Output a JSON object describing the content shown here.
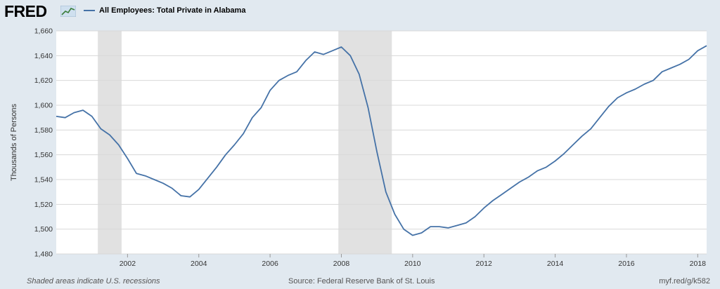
{
  "branding": {
    "logo_text": "FRED"
  },
  "footer": {
    "note": "Shaded areas indicate U.S. recessions",
    "source": "Source: Federal Reserve Bank of St. Louis",
    "link": "myf.red/g/k582"
  },
  "colors": {
    "series": "#4572a7",
    "recession": "#e1e1e1",
    "grid": "#d8d8d8",
    "plot_bg": "#ffffff",
    "page_bg": "#e1e9f0"
  },
  "chart_data": {
    "type": "line",
    "title": "",
    "xlabel": "",
    "ylabel": "Thousands of Persons",
    "ylim": [
      1480,
      1660
    ],
    "xlim": [
      "2000-01-01",
      "2018-04-01"
    ],
    "y_ticks": [
      1480,
      1500,
      1520,
      1540,
      1560,
      1580,
      1600,
      1620,
      1640,
      1660
    ],
    "y_tick_labels": [
      "1,480",
      "1,500",
      "1,520",
      "1,540",
      "1,560",
      "1,580",
      "1,600",
      "1,620",
      "1,640",
      "1,660"
    ],
    "x_ticks": [
      "2002-01-01",
      "2004-01-01",
      "2006-01-01",
      "2008-01-01",
      "2010-01-01",
      "2012-01-01",
      "2014-01-01",
      "2016-01-01",
      "2018-01-01"
    ],
    "x_tick_labels": [
      "2002",
      "2004",
      "2006",
      "2008",
      "2010",
      "2012",
      "2014",
      "2016",
      "2018"
    ],
    "grid": true,
    "legend_position": "top-left",
    "recessions": [
      {
        "start": "2001-03-01",
        "end": "2001-11-01"
      },
      {
        "start": "2007-12-01",
        "end": "2009-06-01"
      }
    ],
    "series": [
      {
        "name": "All Employees: Total Private in Alabama",
        "x": [
          "2000-01",
          "2000-04",
          "2000-07",
          "2000-10",
          "2001-01",
          "2001-04",
          "2001-07",
          "2001-10",
          "2002-01",
          "2002-04",
          "2002-07",
          "2002-10",
          "2003-01",
          "2003-04",
          "2003-07",
          "2003-10",
          "2004-01",
          "2004-04",
          "2004-07",
          "2004-10",
          "2005-01",
          "2005-04",
          "2005-07",
          "2005-10",
          "2006-01",
          "2006-04",
          "2006-07",
          "2006-10",
          "2007-01",
          "2007-04",
          "2007-07",
          "2007-10",
          "2008-01",
          "2008-04",
          "2008-07",
          "2008-10",
          "2009-01",
          "2009-04",
          "2009-07",
          "2009-10",
          "2010-01",
          "2010-04",
          "2010-07",
          "2010-10",
          "2011-01",
          "2011-04",
          "2011-07",
          "2011-10",
          "2012-01",
          "2012-04",
          "2012-07",
          "2012-10",
          "2013-01",
          "2013-04",
          "2013-07",
          "2013-10",
          "2014-01",
          "2014-04",
          "2014-07",
          "2014-10",
          "2015-01",
          "2015-04",
          "2015-07",
          "2015-10",
          "2016-01",
          "2016-04",
          "2016-07",
          "2016-10",
          "2017-01",
          "2017-04",
          "2017-07",
          "2017-10",
          "2018-01",
          "2018-04"
        ],
        "values": [
          1591,
          1590,
          1594,
          1596,
          1591,
          1581,
          1576,
          1568,
          1557,
          1545,
          1543,
          1540,
          1537,
          1533,
          1527,
          1526,
          1532,
          1541,
          1550,
          1560,
          1568,
          1577,
          1590,
          1598,
          1612,
          1620,
          1624,
          1627,
          1636,
          1643,
          1641,
          1644,
          1647,
          1640,
          1625,
          1598,
          1562,
          1530,
          1512,
          1500,
          1495,
          1497,
          1502,
          1502,
          1501,
          1503,
          1505,
          1510,
          1517,
          1523,
          1528,
          1533,
          1538,
          1542,
          1547,
          1550,
          1555,
          1561,
          1568,
          1575,
          1581,
          1590,
          1599,
          1606,
          1610,
          1613,
          1617,
          1620,
          1627,
          1630,
          1633,
          1637,
          1644,
          1648
        ]
      }
    ]
  }
}
